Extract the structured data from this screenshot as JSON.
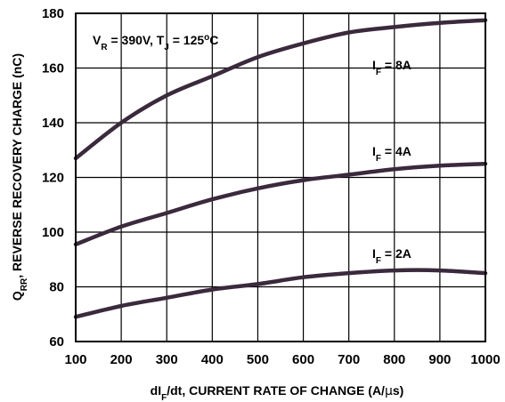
{
  "chart_data": {
    "type": "line",
    "xlabel_parts": [
      "dI",
      "F",
      "/dt, CURRENT RATE OF CHANGE (A/",
      "µ",
      "s)"
    ],
    "ylabel_parts": [
      "Q",
      "RR",
      ", REVERSE RECOVERY CHARGE (nC)"
    ],
    "conditions_parts": [
      "V",
      "R",
      " = 390V, T",
      "J",
      " = 125",
      "o",
      "C"
    ],
    "xlim": [
      100,
      1000
    ],
    "ylim": [
      60,
      180
    ],
    "x_ticks": [
      100,
      200,
      300,
      400,
      500,
      600,
      700,
      800,
      900,
      1000
    ],
    "y_ticks": [
      60,
      80,
      100,
      120,
      140,
      160,
      180
    ],
    "grid": true,
    "line_color": "#3a2a3c",
    "series": [
      {
        "label_parts": [
          "I",
          "F",
          " = 8A"
        ],
        "x": [
          100,
          200,
          300,
          400,
          500,
          600,
          700,
          800,
          900,
          1000
        ],
        "y": [
          127,
          140,
          150,
          157,
          164,
          169,
          173,
          175,
          176.5,
          177.5
        ]
      },
      {
        "label_parts": [
          "I",
          "F",
          " = 4A"
        ],
        "x": [
          100,
          200,
          300,
          400,
          500,
          600,
          700,
          800,
          900,
          1000
        ],
        "y": [
          95.5,
          102,
          107,
          112,
          116,
          119,
          121,
          123,
          124.3,
          125
        ]
      },
      {
        "label_parts": [
          "I",
          "F",
          " = 2A"
        ],
        "x": [
          100,
          200,
          300,
          400,
          500,
          600,
          700,
          800,
          900,
          1000
        ],
        "y": [
          69,
          73,
          76,
          79,
          81,
          83.5,
          85,
          86,
          86,
          85
        ]
      }
    ]
  }
}
